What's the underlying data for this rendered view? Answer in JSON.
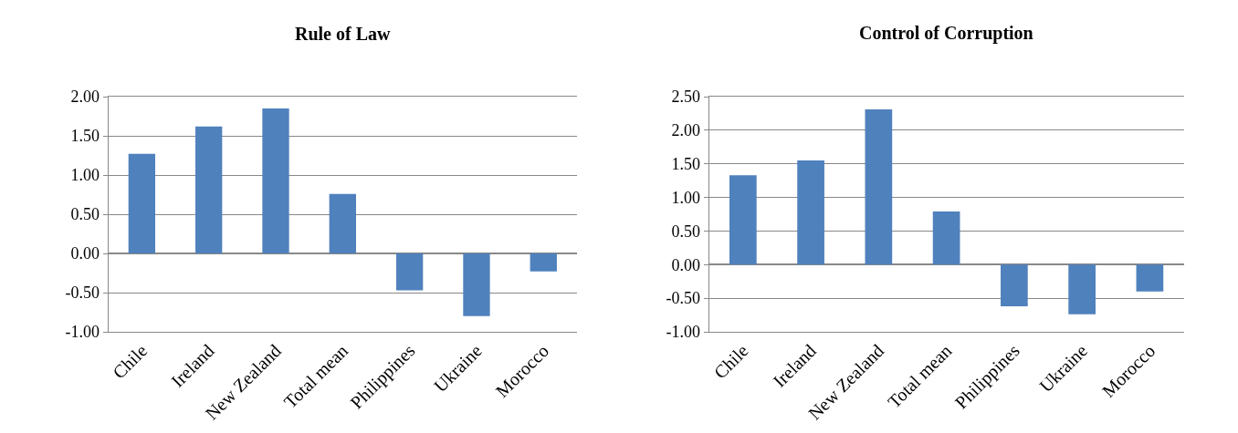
{
  "chart_data": [
    {
      "type": "bar",
      "title": "Rule of Law",
      "categories": [
        "Chile",
        "Ireland",
        "New Zealand",
        "Total mean",
        "Philippines",
        "Ukraine",
        "Morocco"
      ],
      "values": [
        1.27,
        1.62,
        1.85,
        0.76,
        -0.47,
        -0.8,
        -0.23
      ],
      "color": "#4f81bd",
      "ylim": [
        -1.0,
        2.0
      ],
      "yticks": [
        {
          "value": -1.0,
          "label": "-1.00"
        },
        {
          "value": -0.5,
          "label": "-0.50"
        },
        {
          "value": 0,
          "label": "0.00"
        },
        {
          "value": 0.5,
          "label": "0.50"
        },
        {
          "value": 1.0,
          "label": "1.00"
        },
        {
          "value": 1.5,
          "label": "1.50"
        },
        {
          "value": 2.0,
          "label": "2.00"
        }
      ],
      "grid": "y"
    },
    {
      "type": "bar",
      "title": "Control of Corruption",
      "categories": [
        "Chile",
        "Ireland",
        "New Zealand",
        "Total mean",
        "Philippines",
        "Ukraine",
        "Morocco"
      ],
      "values": [
        1.33,
        1.55,
        2.31,
        0.79,
        -0.62,
        -0.74,
        -0.4
      ],
      "color": "#4f81bd",
      "ylim": [
        -1.0,
        2.5
      ],
      "yticks": [
        {
          "value": -1.0,
          "label": "-1.00"
        },
        {
          "value": -0.5,
          "label": "-0.50"
        },
        {
          "value": 0,
          "label": "0.00"
        },
        {
          "value": 0.5,
          "label": "0.50"
        },
        {
          "value": 1.0,
          "label": "1.00"
        },
        {
          "value": 1.5,
          "label": "1.50"
        },
        {
          "value": 2.0,
          "label": "2.00"
        },
        {
          "value": 2.5,
          "label": "2.50"
        }
      ],
      "grid": "y"
    }
  ]
}
